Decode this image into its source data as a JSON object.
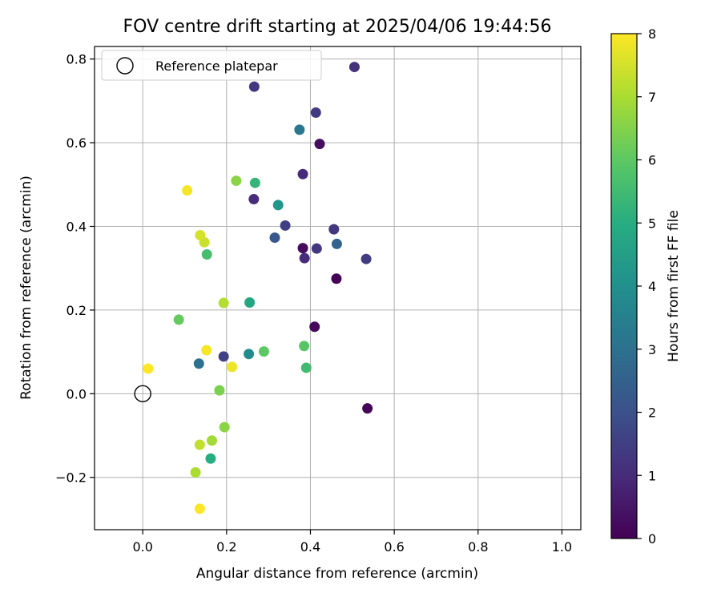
{
  "chart_data": {
    "type": "scatter",
    "title": "FOV centre drift starting at 2025/04/06 19:44:56",
    "xlabel": "Angular distance from reference (arcmin)",
    "ylabel": "Rotation from reference (arcmin)",
    "xlim": [
      -0.115,
      1.045
    ],
    "ylim": [
      -0.325,
      0.83
    ],
    "xticks": [
      0.0,
      0.2,
      0.4,
      0.6,
      0.8,
      1.0
    ],
    "xtick_labels": [
      "0.0",
      "0.2",
      "0.4",
      "0.6",
      "0.8",
      "1.0"
    ],
    "yticks": [
      -0.2,
      0.0,
      0.2,
      0.4,
      0.6,
      0.8
    ],
    "ytick_labels": [
      "−0.2",
      "0.0",
      "0.2",
      "0.4",
      "0.6",
      "0.8"
    ],
    "grid": true,
    "legend": {
      "placement": "upper-left",
      "entries": [
        "Reference platepar"
      ]
    },
    "reference_point": {
      "x": 0.0,
      "y": 0.0,
      "name": "Reference platepar"
    },
    "colorbar": {
      "label": "Hours from first FF file",
      "range": [
        0,
        8
      ],
      "ticks": [
        0,
        1,
        2,
        3,
        4,
        5,
        6,
        7,
        8
      ],
      "tick_labels": [
        "0",
        "1",
        "2",
        "3",
        "4",
        "5",
        "6",
        "7",
        "8"
      ],
      "colormap": "viridis"
    },
    "points": [
      {
        "x": 0.462,
        "y": 0.275,
        "t": 0.05
      },
      {
        "x": 0.536,
        "y": -0.035,
        "t": 0.1
      },
      {
        "x": 0.41,
        "y": 0.16,
        "t": 0.2
      },
      {
        "x": 0.382,
        "y": 0.348,
        "t": 0.25
      },
      {
        "x": 0.422,
        "y": 0.597,
        "t": 0.3
      },
      {
        "x": 0.386,
        "y": 0.324,
        "t": 1.0
      },
      {
        "x": 0.382,
        "y": 0.525,
        "t": 1.0
      },
      {
        "x": 0.265,
        "y": 0.465,
        "t": 1.0
      },
      {
        "x": 0.505,
        "y": 0.781,
        "t": 1.2
      },
      {
        "x": 0.266,
        "y": 0.734,
        "t": 1.3
      },
      {
        "x": 0.415,
        "y": 0.347,
        "t": 1.3
      },
      {
        "x": 0.456,
        "y": 0.393,
        "t": 1.3
      },
      {
        "x": 0.413,
        "y": 0.672,
        "t": 1.4
      },
      {
        "x": 0.533,
        "y": 0.322,
        "t": 1.4
      },
      {
        "x": 0.34,
        "y": 0.402,
        "t": 1.5
      },
      {
        "x": 0.193,
        "y": 0.089,
        "t": 1.6
      },
      {
        "x": 0.315,
        "y": 0.373,
        "t": 2.2
      },
      {
        "x": 0.463,
        "y": 0.358,
        "t": 2.6
      },
      {
        "x": 0.134,
        "y": 0.072,
        "t": 3.0
      },
      {
        "x": 0.374,
        "y": 0.631,
        "t": 3.2
      },
      {
        "x": 0.253,
        "y": 0.095,
        "t": 3.8
      },
      {
        "x": 0.323,
        "y": 0.451,
        "t": 4.2
      },
      {
        "x": 0.255,
        "y": 0.218,
        "t": 4.8
      },
      {
        "x": 0.162,
        "y": -0.155,
        "t": 5.0
      },
      {
        "x": 0.268,
        "y": 0.504,
        "t": 5.3
      },
      {
        "x": 0.39,
        "y": 0.062,
        "t": 5.5
      },
      {
        "x": 0.153,
        "y": 0.333,
        "t": 5.6
      },
      {
        "x": 0.385,
        "y": 0.114,
        "t": 5.9
      },
      {
        "x": 0.289,
        "y": 0.101,
        "t": 6.0
      },
      {
        "x": 0.086,
        "y": 0.177,
        "t": 6.1
      },
      {
        "x": 0.183,
        "y": 0.008,
        "t": 6.4
      },
      {
        "x": 0.223,
        "y": 0.509,
        "t": 6.6
      },
      {
        "x": 0.195,
        "y": -0.08,
        "t": 6.6
      },
      {
        "x": 0.165,
        "y": -0.112,
        "t": 6.9
      },
      {
        "x": 0.126,
        "y": -0.188,
        "t": 7.0
      },
      {
        "x": 0.193,
        "y": 0.217,
        "t": 7.1
      },
      {
        "x": 0.136,
        "y": -0.122,
        "t": 7.3
      },
      {
        "x": 0.147,
        "y": 0.362,
        "t": 7.4
      },
      {
        "x": 0.137,
        "y": 0.379,
        "t": 7.5
      },
      {
        "x": 0.213,
        "y": 0.064,
        "t": 7.8
      },
      {
        "x": 0.152,
        "y": 0.104,
        "t": 7.9
      },
      {
        "x": 0.106,
        "y": 0.486,
        "t": 7.9
      },
      {
        "x": 0.013,
        "y": 0.06,
        "t": 8.0
      },
      {
        "x": 0.136,
        "y": -0.275,
        "t": 8.0
      }
    ]
  }
}
